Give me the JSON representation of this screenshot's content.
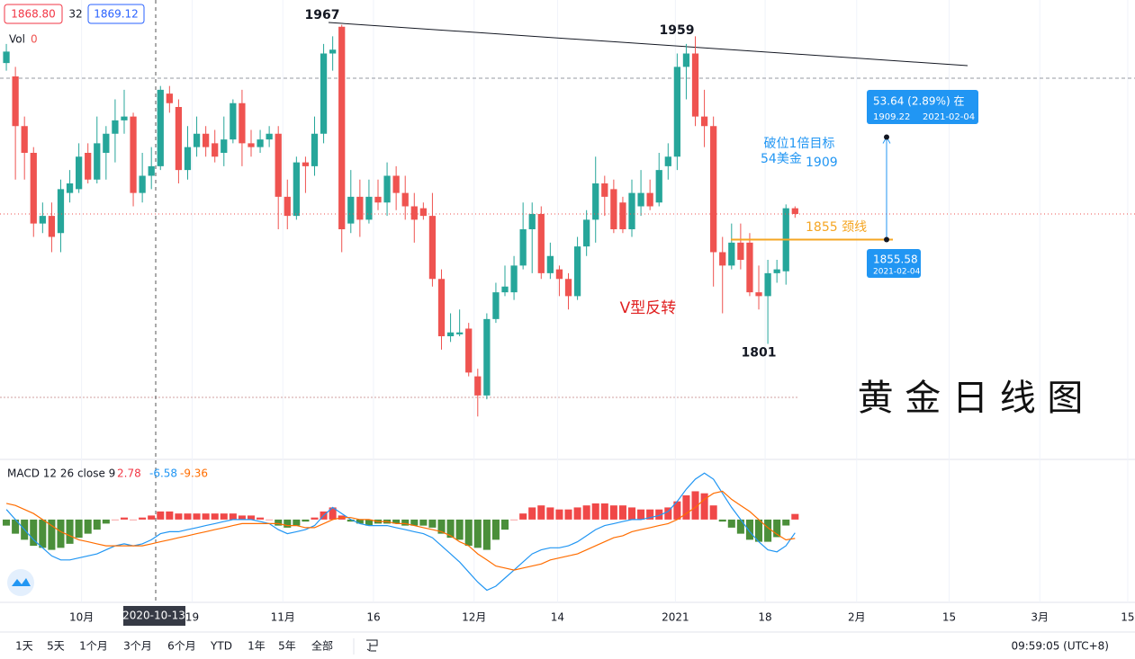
{
  "header": {
    "bid": "1868.80",
    "spread": "32",
    "ask": "1869.12",
    "volume_label": "Vol",
    "volume_value": "0"
  },
  "chart_data": [
    {
      "type": "candlestick",
      "colors": {
        "up": "#26a69a",
        "down": "#ef5350"
      },
      "open": [
        1948,
        1941,
        1915,
        1901,
        1864,
        1868,
        1859,
        1880,
        1882,
        1901,
        1887,
        1901,
        1911,
        1918,
        1920,
        1880,
        1889,
        1894,
        1932,
        1925,
        1892,
        1904,
        1911,
        1906,
        1901,
        1908,
        1927,
        1906,
        1904,
        1908,
        1911,
        1878,
        1868,
        1896,
        1894,
        1911,
        1953,
        1967,
        1864,
        1878,
        1866,
        1878,
        1875,
        1889,
        1880,
        1873,
        1872,
        1868,
        1835,
        1805,
        1806,
        1809,
        1784,
        1774,
        1814,
        1828,
        1828,
        1842,
        1861,
        1869,
        1838,
        1840,
        1835,
        1826,
        1852,
        1866,
        1885,
        1882,
        1875,
        1861,
        1873,
        1880,
        1875,
        1894,
        1899,
        1946,
        1953,
        1920,
        1915,
        1849,
        1842,
        1854,
        1854,
        1828,
        1826,
        1838,
        1839,
        1872
      ],
      "high": [
        1958,
        1946,
        1920,
        1904,
        1875,
        1875,
        1887,
        1892,
        1906,
        1906,
        1920,
        1915,
        1929,
        1934,
        1922,
        1901,
        1904,
        1936,
        1936,
        1929,
        1915,
        1920,
        1915,
        1913,
        1920,
        1929,
        1934,
        1913,
        1913,
        1915,
        1915,
        1887,
        1899,
        1899,
        1920,
        1958,
        1962,
        1968,
        1892,
        1887,
        1887,
        1887,
        1896,
        1894,
        1889,
        1880,
        1875,
        1880,
        1840,
        1817,
        1819,
        1812,
        1788,
        1817,
        1833,
        1842,
        1847,
        1875,
        1875,
        1873,
        1854,
        1842,
        1838,
        1857,
        1871,
        1899,
        1889,
        1887,
        1878,
        1887,
        1892,
        1887,
        1901,
        1906,
        1953,
        1958,
        1962,
        1934,
        1920,
        1857,
        1864,
        1864,
        1859,
        1842,
        1845,
        1845,
        1874,
        1873
      ],
      "low": [
        1944,
        1887,
        1887,
        1857,
        1859,
        1849,
        1849,
        1875,
        1880,
        1885,
        1885,
        1887,
        1896,
        1911,
        1873,
        1875,
        1882,
        1892,
        1922,
        1885,
        1887,
        1899,
        1899,
        1896,
        1894,
        1906,
        1894,
        1899,
        1901,
        1904,
        1861,
        1861,
        1866,
        1880,
        1889,
        1906,
        1944,
        1849,
        1859,
        1857,
        1864,
        1871,
        1868,
        1871,
        1866,
        1854,
        1866,
        1831,
        1798,
        1802,
        1805,
        1784,
        1763,
        1772,
        1812,
        1826,
        1824,
        1840,
        1838,
        1835,
        1835,
        1826,
        1819,
        1824,
        1847,
        1854,
        1868,
        1859,
        1859,
        1857,
        1868,
        1871,
        1873,
        1887,
        1892,
        1929,
        1915,
        1904,
        1831,
        1817,
        1840,
        1840,
        1826,
        1819,
        1801,
        1833,
        1832,
        1867
      ],
      "close": [
        1954,
        1915,
        1901,
        1864,
        1868,
        1857,
        1882,
        1885,
        1899,
        1887,
        1906,
        1911,
        1918,
        1920,
        1880,
        1889,
        1894,
        1934,
        1927,
        1892,
        1904,
        1911,
        1904,
        1899,
        1908,
        1927,
        1906,
        1904,
        1908,
        1911,
        1878,
        1868,
        1896,
        1894,
        1911,
        1953,
        1955,
        1861,
        1878,
        1866,
        1878,
        1875,
        1889,
        1880,
        1873,
        1866,
        1868,
        1835,
        1805,
        1807,
        1807,
        1786,
        1774,
        1814,
        1828,
        1831,
        1842,
        1861,
        1869,
        1838,
        1847,
        1835,
        1826,
        1852,
        1866,
        1885,
        1878,
        1861,
        1861,
        1880,
        1880,
        1873,
        1892,
        1899,
        1946,
        1953,
        1920,
        1915,
        1849,
        1842,
        1854,
        1845,
        1828,
        1826,
        1838,
        1840,
        1872,
        1869
      ],
      "xlim": [
        -0.7,
        124.5
      ],
      "ylim": [
        1741,
        1981
      ],
      "xticks": [
        {
          "value": 8.3,
          "label": "10月"
        },
        {
          "value": 20.5,
          "label": "19"
        },
        {
          "value": 30.5,
          "label": "11月"
        },
        {
          "value": 40.5,
          "label": "16"
        },
        {
          "value": 51.6,
          "label": "12月"
        },
        {
          "value": 60.8,
          "label": "14"
        },
        {
          "value": 73.8,
          "label": "2021"
        },
        {
          "value": 83.7,
          "label": "18"
        },
        {
          "value": 93.8,
          "label": "2月"
        },
        {
          "value": 104,
          "label": "15"
        },
        {
          "value": 114,
          "label": "3月"
        },
        {
          "value": 123.7,
          "label": "15"
        }
      ],
      "crosshair_date": "2020-10-13",
      "peaks": [
        1967,
        1959
      ],
      "low_mark": 1801,
      "target_text": [
        "破位1倍目标",
        "54美金"
      ],
      "target_price": "1909",
      "neckline_text": "1855 颈线",
      "pattern_text": "V型反转",
      "watermark": "黄 金 日 线 图",
      "neckline": {
        "value": 1855.58,
        "label": "1855.58",
        "date": "2021-02-04"
      },
      "target": {
        "value": 1909.22,
        "label": "1909.22",
        "date": "2021-02-04",
        "measure": "53.64 (2.89%) 在"
      }
    },
    {
      "type": "macd",
      "label": "MACD 12 26 close 9",
      "ylim": [
        -41,
        28
      ],
      "histogram": {
        "color_up": "#f04848",
        "color_down": "#4b8f3a",
        "legend_color": "#f23645",
        "values": [
          -3,
          -7,
          -10,
          -13,
          -14,
          -15,
          -14,
          -12,
          -9,
          -7,
          -5,
          -2,
          0,
          1,
          0,
          1,
          2,
          4,
          4,
          3,
          3,
          3,
          3,
          3,
          3,
          3,
          2,
          2,
          1,
          0,
          -3,
          -4,
          -3,
          -1,
          1,
          4,
          6,
          2,
          -1,
          -2,
          -3,
          -2,
          -2,
          -2,
          -3,
          -3,
          -3,
          -4,
          -7,
          -9,
          -10,
          -13,
          -14,
          -15,
          -10,
          -5,
          0,
          3,
          6,
          7,
          6,
          5,
          5,
          6,
          7,
          8,
          8,
          7,
          7,
          6,
          5,
          5,
          5,
          6,
          9,
          12,
          14,
          13,
          7,
          -1,
          -4,
          -7,
          -10,
          -11,
          -11,
          -8.7,
          -2.95,
          2.78
        ]
      },
      "macd": {
        "color": "#2196f3",
        "values": [
          5,
          0,
          -5,
          -10,
          -14,
          -18,
          -20,
          -20,
          -19,
          -18,
          -17,
          -15,
          -13,
          -12,
          -13,
          -12,
          -10,
          -7,
          -6,
          -6,
          -5,
          -4,
          -3,
          -2,
          -1,
          0,
          0,
          0,
          -1,
          -2,
          -5,
          -7,
          -6,
          -5,
          -3,
          2,
          6,
          3,
          0,
          -2,
          -3,
          -3,
          -3,
          -4,
          -5,
          -6,
          -7,
          -9,
          -13,
          -17,
          -21,
          -26,
          -31,
          -35,
          -33,
          -29,
          -25,
          -21,
          -17,
          -15,
          -14,
          -14,
          -13,
          -11,
          -8,
          -5,
          -3,
          -2,
          -1,
          0,
          0,
          1,
          2,
          4,
          9,
          15,
          20,
          23,
          20,
          13,
          6,
          0,
          -6,
          -11,
          -15,
          -16,
          -13,
          -6.58
        ]
      },
      "signal": {
        "color": "#ff6d00",
        "values": [
          8,
          7,
          5,
          3,
          0,
          -3,
          -6,
          -8,
          -10,
          -11,
          -12,
          -13,
          -13,
          -13,
          -13,
          -13,
          -12,
          -11,
          -10,
          -9,
          -8,
          -7,
          -6,
          -5,
          -4,
          -3,
          -2,
          -2,
          -2,
          -2,
          -2,
          -3,
          -3,
          -4,
          -4,
          -2,
          0,
          1,
          1,
          0,
          0,
          -1,
          -1,
          -2,
          -2,
          -3,
          -4,
          -5,
          -6,
          -8,
          -11,
          -13,
          -17,
          -20,
          -23,
          -24,
          -25,
          -24,
          -23,
          -22,
          -20,
          -19,
          -18,
          -17,
          -15,
          -13,
          -11,
          -9,
          -8,
          -6,
          -5,
          -4,
          -3,
          -2,
          0,
          3,
          6,
          10,
          13,
          14,
          10,
          7,
          4,
          0,
          -4,
          -7.3,
          -10.05,
          -9.36
        ]
      }
    }
  ],
  "toolbar": {
    "ranges": [
      "1天",
      "5天",
      "1个月",
      "3个月",
      "6个月",
      "YTD",
      "1年",
      "5年",
      "全部"
    ],
    "time": "09:59:05 (UTC+8)"
  }
}
